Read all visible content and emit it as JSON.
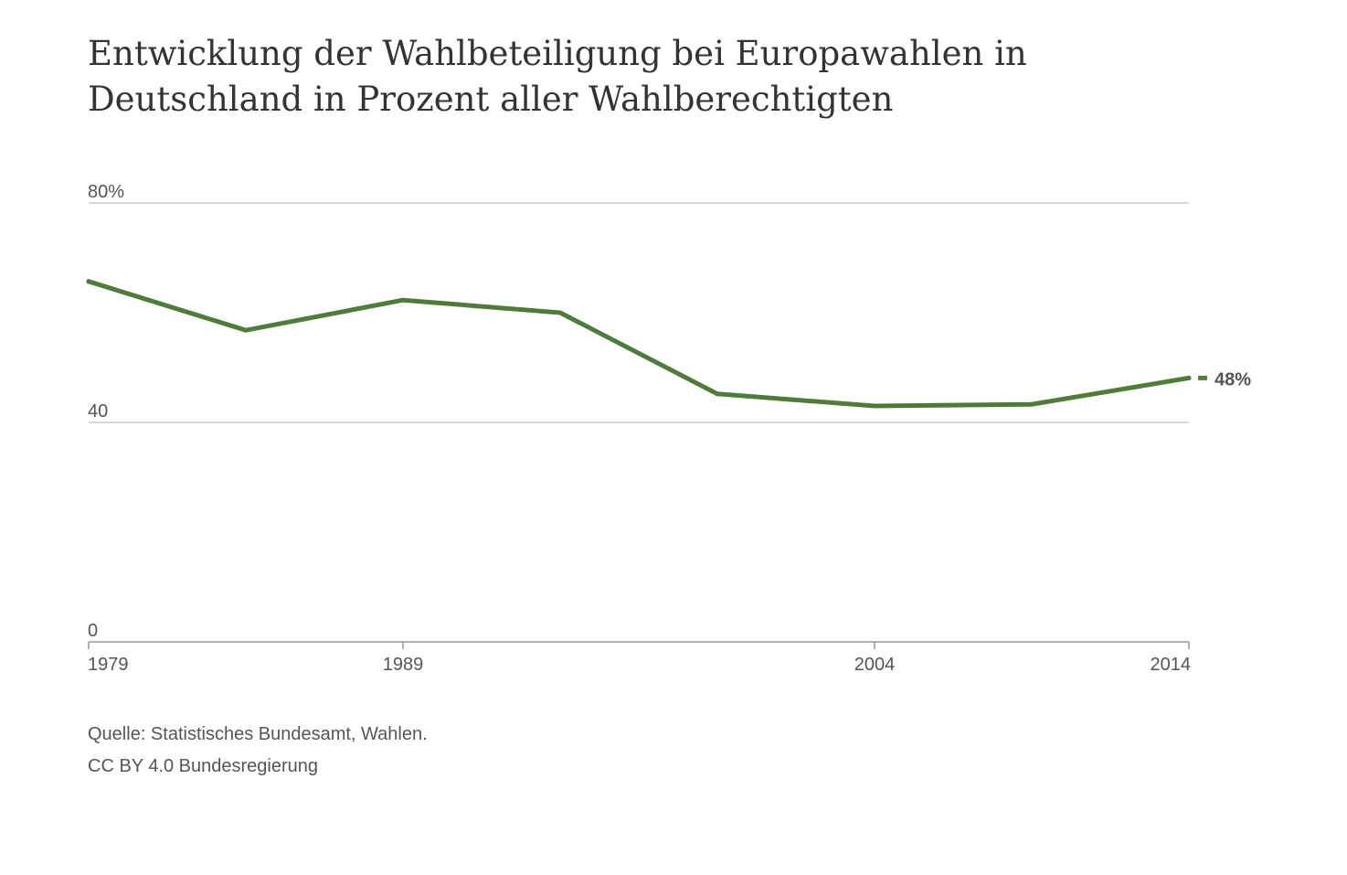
{
  "title": "Entwicklung der Wahlbeteiligung bei Europawahlen in Deutschland in Prozent aller Wahlberechtigten",
  "source": "Quelle: Statistisches Bundesamt, Wahlen.",
  "license": "CC BY 4.0 Bundesregierung",
  "colors": {
    "line": "#4f7c3a",
    "grid": "#cccccc",
    "axis": "#999999",
    "text": "#555555",
    "title": "#333333"
  },
  "chart_data": {
    "type": "line",
    "title": "Entwicklung der Wahlbeteiligung bei Europawahlen in Deutschland in Prozent aller Wahlberechtigten",
    "xlabel": "",
    "ylabel": "",
    "x": [
      1979,
      1984,
      1989,
      1994,
      1999,
      2004,
      2009,
      2014
    ],
    "series": [
      {
        "values": [
          65.7,
          56.8,
          62.3,
          60.0,
          45.2,
          43.0,
          43.3,
          48.1
        ]
      }
    ],
    "xlim": [
      1979,
      2014
    ],
    "ylim": [
      0,
      80
    ],
    "x_ticks": [
      1979,
      1989,
      2004,
      2014
    ],
    "y_ticks": [
      {
        "value": 80,
        "label": "80%"
      },
      {
        "value": 40,
        "label": "40"
      },
      {
        "value": 0,
        "label": "0"
      }
    ],
    "end_label": "48%",
    "grid": true,
    "legend": "none"
  }
}
